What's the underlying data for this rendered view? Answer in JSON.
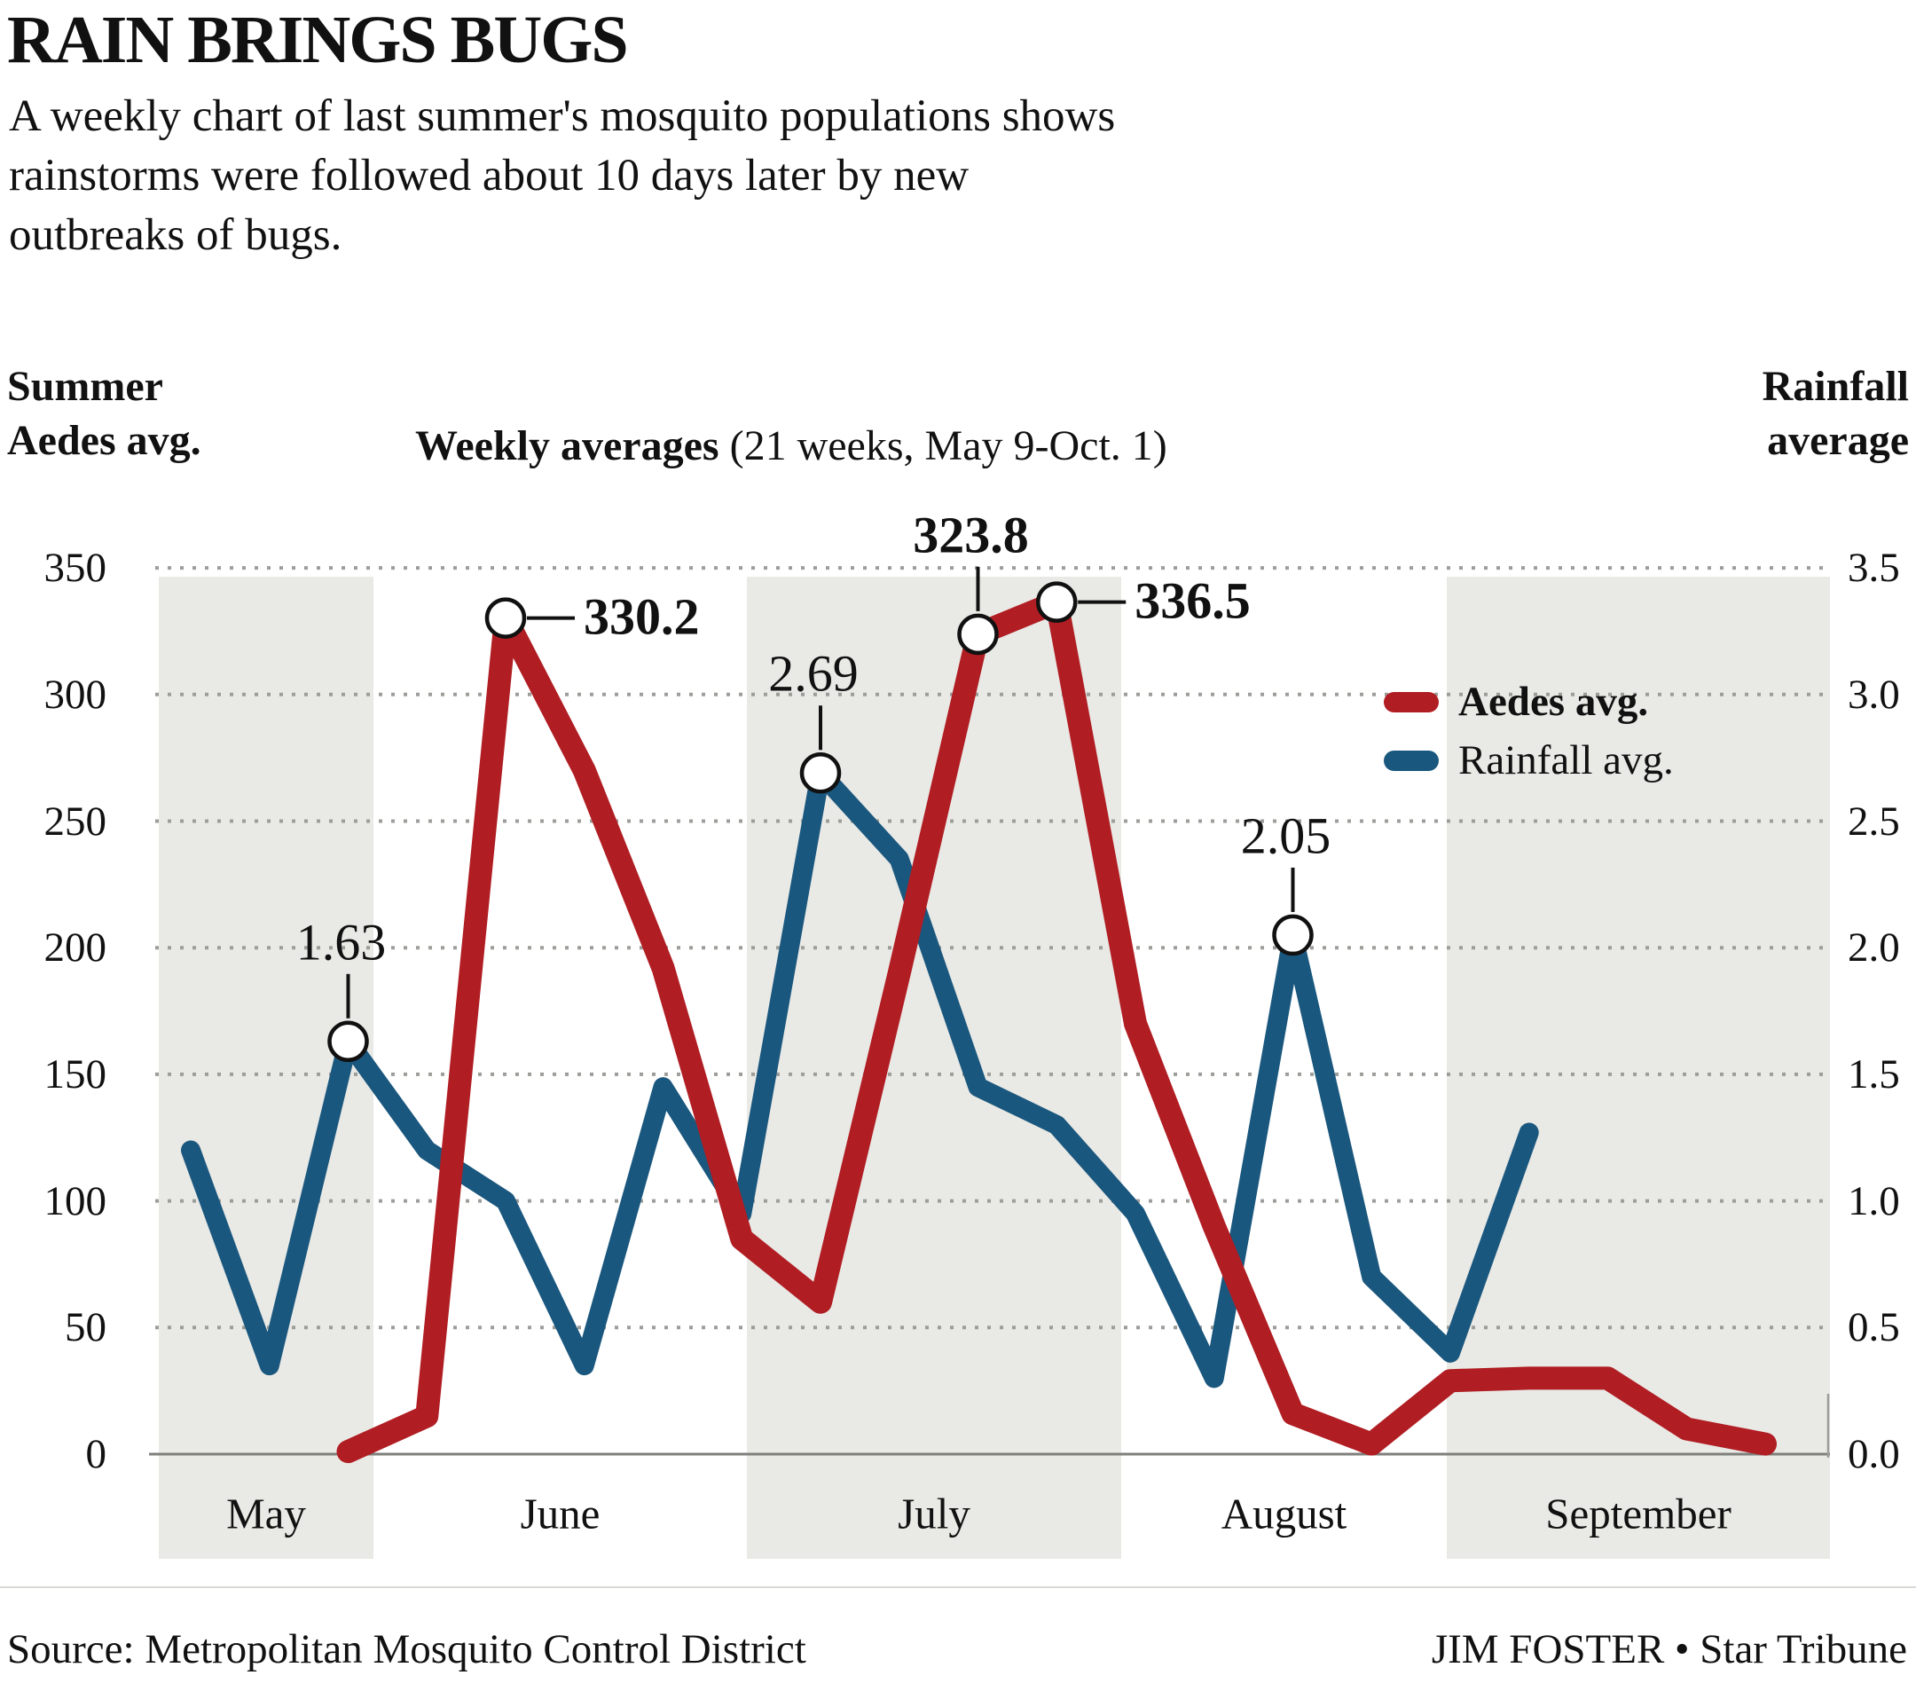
{
  "header": {
    "title": "RAIN BRINGS BUGS",
    "subtitle_lines": [
      "A weekly chart of last summer's mosquito populations shows",
      "rainstorms were followed about 10 days later by new",
      "outbreaks of bugs."
    ]
  },
  "labels": {
    "left_axis_title_lines": [
      "Summer",
      "Aedes avg."
    ],
    "center_title_bold": "Weekly averages",
    "center_title_rest": " (21 weeks, May 9-Oct. 1)",
    "right_axis_title_lines": [
      "Rainfall",
      "average"
    ]
  },
  "legend": {
    "items": [
      {
        "label": "Aedes avg.",
        "color": "#b01d23",
        "bold": true
      },
      {
        "label": "Rainfall avg.",
        "color": "#1a577e",
        "bold": false
      }
    ]
  },
  "chart_data": {
    "type": "line",
    "title": "Weekly averages (21 weeks, May 9-Oct. 1)",
    "weeks_count": 21,
    "x_unit": "week",
    "grid": "dotted-horizontal",
    "legend_position": "inside-right",
    "left_axis": {
      "label": "Summer Aedes avg.",
      "ticks": [
        "350",
        "300",
        "250",
        "200",
        "150",
        "100",
        "50",
        "0"
      ],
      "range": [
        0,
        350
      ]
    },
    "right_axis": {
      "label": "Rainfall average",
      "ticks": [
        "3.5",
        "3.0",
        "2.5",
        "2.0",
        "1.5",
        "1.0",
        "0.5",
        "0.0"
      ],
      "range": [
        0,
        3.5
      ]
    },
    "months": [
      {
        "label": "May",
        "shaded": true
      },
      {
        "label": "June",
        "shaded": false
      },
      {
        "label": "July",
        "shaded": true
      },
      {
        "label": "August",
        "shaded": false
      },
      {
        "label": "September",
        "shaded": true
      }
    ],
    "series": [
      {
        "name": "Rainfall avg.",
        "axis": "right",
        "color": "#1a577e",
        "values": [
          1.2,
          0.35,
          1.63,
          1.2,
          1.0,
          0.35,
          1.45,
          0.95,
          2.69,
          2.35,
          1.45,
          1.3,
          0.95,
          0.3,
          2.05,
          0.7,
          0.4,
          1.27,
          null,
          null,
          null
        ]
      },
      {
        "name": "Aedes avg.",
        "axis": "left",
        "color": "#b01d23",
        "values": [
          null,
          null,
          1,
          15,
          330.2,
          270,
          192,
          85,
          60,
          190,
          323.8,
          336.5,
          170,
          90,
          16,
          4,
          29,
          30,
          30,
          10,
          4
        ]
      }
    ],
    "annotations": [
      {
        "series": "Rainfall avg.",
        "week": 2,
        "value": 1.63,
        "label": "1.63",
        "placement": "above",
        "bold": false
      },
      {
        "series": "Aedes avg.",
        "week": 4,
        "value": 330.2,
        "label": "330.2",
        "placement": "right",
        "bold": true
      },
      {
        "series": "Rainfall avg.",
        "week": 8,
        "value": 2.69,
        "label": "2.69",
        "placement": "above",
        "bold": false
      },
      {
        "series": "Aedes avg.",
        "week": 10,
        "value": 323.8,
        "label": "323.8",
        "placement": "above",
        "bold": true
      },
      {
        "series": "Aedes avg.",
        "week": 11,
        "value": 336.5,
        "label": "336.5",
        "placement": "right",
        "bold": true
      },
      {
        "series": "Rainfall avg.",
        "week": 14,
        "value": 2.05,
        "label": "2.05",
        "placement": "above",
        "bold": false
      }
    ]
  },
  "footer": {
    "source": "Source: Metropolitan Mosquito Control District",
    "credit": "JIM FOSTER • Star Tribune"
  }
}
